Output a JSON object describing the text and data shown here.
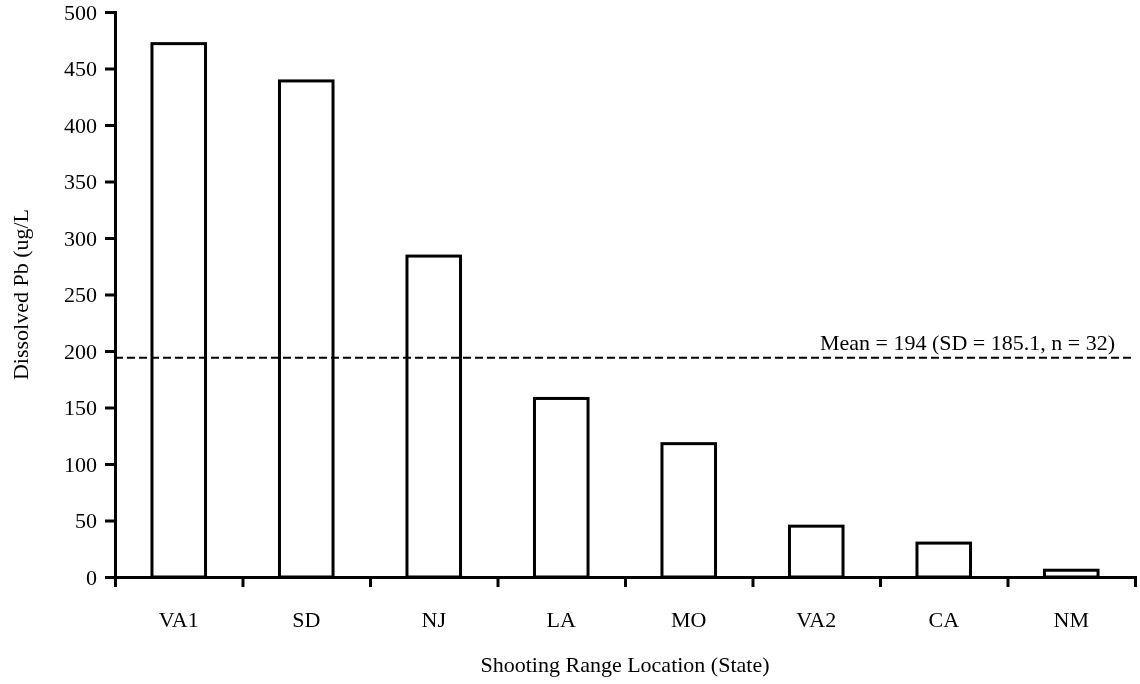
{
  "chart_data": {
    "type": "bar",
    "xlabel": "Shooting Range Location (State)",
    "ylabel": "Dissolved Pb (ug/L",
    "categories": [
      "VA1",
      "SD",
      "NJ",
      "LA",
      "MO",
      "VA2",
      "CA",
      "NM"
    ],
    "values": [
      472,
      439,
      284,
      158,
      118,
      45,
      30,
      6
    ],
    "color": "#ffffff",
    "ylim": [
      0,
      500
    ],
    "yticks": [
      0,
      50,
      100,
      150,
      200,
      250,
      300,
      350,
      400,
      450,
      500
    ],
    "grid": false,
    "ref_lines": [
      {
        "axis": "y",
        "value": 194,
        "label": "Mean = 194 (SD = 185.1, n = 32)",
        "line_style": "dashed",
        "color": "#000000"
      }
    ]
  }
}
